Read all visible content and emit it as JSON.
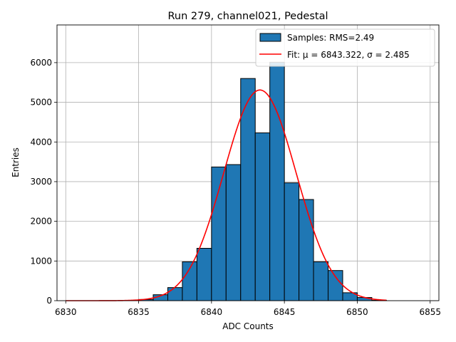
{
  "chart_data": {
    "type": "bar",
    "title": "Run 279, channel021, Pedestal",
    "xlabel": "ADC Counts",
    "ylabel": "Entries",
    "xlim": [
      6829.4,
      6855.6
    ],
    "ylim": [
      0,
      6950
    ],
    "xticks": [
      6830,
      6835,
      6840,
      6845,
      6850,
      6855
    ],
    "yticks": [
      0,
      1000,
      2000,
      3000,
      4000,
      5000,
      6000
    ],
    "grid": true,
    "legend_position": "top-right",
    "histogram": {
      "name": "Samples: RMS=2.49",
      "color": "#1f77b4",
      "edgecolor": "#000000",
      "bins": [
        {
          "x0": 6835,
          "x1": 6836,
          "count": 30
        },
        {
          "x0": 6836,
          "x1": 6837,
          "count": 150
        },
        {
          "x0": 6837,
          "x1": 6838,
          "count": 330
        },
        {
          "x0": 6838,
          "x1": 6839,
          "count": 980
        },
        {
          "x0": 6839,
          "x1": 6840,
          "count": 1320
        },
        {
          "x0": 6840,
          "x1": 6841,
          "count": 3370
        },
        {
          "x0": 6841,
          "x1": 6842,
          "count": 3430
        },
        {
          "x0": 6842,
          "x1": 6843,
          "count": 5600
        },
        {
          "x0": 6843,
          "x1": 6844,
          "count": 4230
        },
        {
          "x0": 6844,
          "x1": 6845,
          "count": 6010
        },
        {
          "x0": 6845,
          "x1": 6846,
          "count": 2970
        },
        {
          "x0": 6846,
          "x1": 6847,
          "count": 2550
        },
        {
          "x0": 6847,
          "x1": 6848,
          "count": 980
        },
        {
          "x0": 6848,
          "x1": 6849,
          "count": 760
        },
        {
          "x0": 6849,
          "x1": 6850,
          "count": 200
        },
        {
          "x0": 6850,
          "x1": 6851,
          "count": 80
        },
        {
          "x0": 6851,
          "x1": 6852,
          "count": 10
        }
      ]
    },
    "fit": {
      "name": "Fit: μ = 6843.322, σ = 2.485",
      "color": "#ff0000",
      "mu": 6843.322,
      "sigma": 2.485,
      "amplitude": 5310,
      "x_range": [
        6830,
        6852
      ]
    }
  }
}
